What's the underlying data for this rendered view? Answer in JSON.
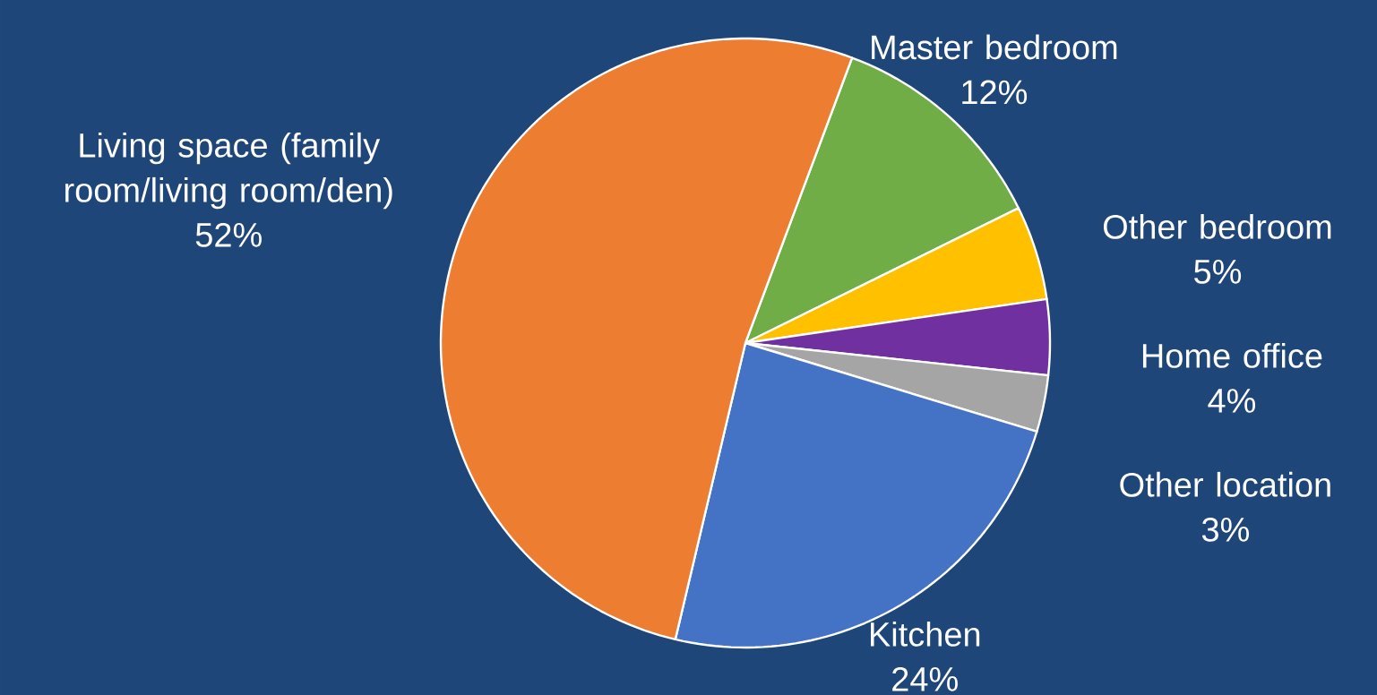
{
  "chart_data": {
    "type": "pie",
    "categories": [
      "Master bedroom",
      "Other bedroom",
      "Home office",
      "Other location",
      "Kitchen",
      "Living space (family room/living room/den)"
    ],
    "values": [
      12,
      5,
      4,
      3,
      24,
      52
    ],
    "value_labels": [
      "12%",
      "5%",
      "4%",
      "3%",
      "24%",
      "52%"
    ],
    "colors": [
      "#70ad47",
      "#ffc000",
      "#7030a0",
      "#a5a5a5",
      "#4472c4",
      "#ed7d31"
    ]
  }
}
